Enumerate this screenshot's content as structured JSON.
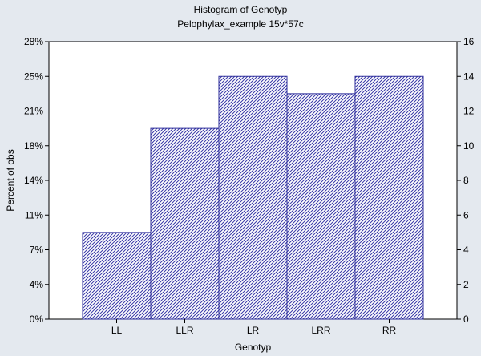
{
  "chart_data": {
    "type": "bar",
    "title": "Histogram of Genotyp",
    "subtitle": "Pelophylax_example 15v*57c",
    "xlabel": "Genotyp",
    "ylabel": "Percent of obs",
    "categories": [
      "LL",
      "LLR",
      "LR",
      "LRR",
      "RR"
    ],
    "values": [
      5,
      11,
      14,
      13,
      14
    ],
    "ylim": [
      0,
      16
    ],
    "y_right_ticks": [
      "0",
      "2",
      "4",
      "6",
      "8",
      "10",
      "12",
      "14",
      "16"
    ],
    "y_left_ticks": [
      "0%",
      "4%",
      "7%",
      "11%",
      "14%",
      "18%",
      "21%",
      "25%",
      "28%"
    ],
    "grid": false,
    "legend": "none",
    "colors": {
      "bar_stroke": "#2b2b9a",
      "bar_hatch": "#3a3aa8",
      "bar_fill": "#ffffff",
      "background": "#e4e9ef"
    }
  }
}
